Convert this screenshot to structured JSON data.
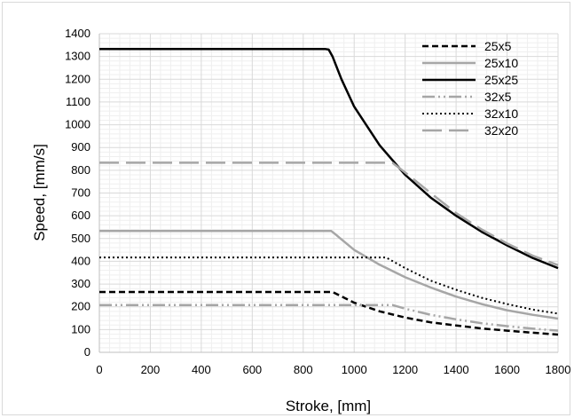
{
  "chart_data": {
    "type": "line",
    "title": "",
    "xlabel": "Stroke, [mm]",
    "ylabel": "Speed, [mm/s]",
    "xlim": [
      0,
      1800
    ],
    "ylim": [
      0,
      1400
    ],
    "x_ticks": [
      "0",
      "200",
      "400",
      "600",
      "800",
      "1000",
      "1200",
      "1400",
      "1600",
      "1800"
    ],
    "y_ticks": [
      "0",
      "100",
      "200",
      "300",
      "400",
      "500",
      "600",
      "700",
      "800",
      "900",
      "1000",
      "1100",
      "1200",
      "1300",
      "1400"
    ],
    "grid": "major and minor gridlines",
    "legend_position": "top-right",
    "series": [
      {
        "name": "25x5",
        "color": "#000000",
        "style": "dashed-thick",
        "points": [
          [
            0,
            265
          ],
          [
            915,
            265
          ],
          [
            1000,
            218
          ],
          [
            1100,
            180
          ],
          [
            1200,
            153
          ],
          [
            1300,
            132
          ],
          [
            1400,
            118
          ],
          [
            1500,
            105
          ],
          [
            1600,
            95
          ],
          [
            1700,
            86
          ],
          [
            1800,
            78
          ]
        ]
      },
      {
        "name": "25x10",
        "color": "#a6a6a6",
        "style": "solid",
        "points": [
          [
            0,
            533
          ],
          [
            910,
            533
          ],
          [
            925,
            520
          ],
          [
            1000,
            450
          ],
          [
            1100,
            385
          ],
          [
            1200,
            330
          ],
          [
            1300,
            285
          ],
          [
            1400,
            245
          ],
          [
            1500,
            212
          ],
          [
            1600,
            185
          ],
          [
            1700,
            165
          ],
          [
            1800,
            148
          ]
        ]
      },
      {
        "name": "25x25",
        "color": "#000000",
        "style": "solid-thick",
        "points": [
          [
            0,
            1333
          ],
          [
            885,
            1333
          ],
          [
            900,
            1330
          ],
          [
            915,
            1300
          ],
          [
            950,
            1200
          ],
          [
            1000,
            1080
          ],
          [
            1100,
            910
          ],
          [
            1200,
            780
          ],
          [
            1300,
            680
          ],
          [
            1400,
            600
          ],
          [
            1500,
            530
          ],
          [
            1600,
            470
          ],
          [
            1700,
            415
          ],
          [
            1800,
            370
          ]
        ]
      },
      {
        "name": "32x5",
        "color": "#a6a6a6",
        "style": "dash-dot-dot",
        "points": [
          [
            0,
            208
          ],
          [
            1150,
            208
          ],
          [
            1200,
            192
          ],
          [
            1300,
            165
          ],
          [
            1400,
            145
          ],
          [
            1500,
            128
          ],
          [
            1600,
            115
          ],
          [
            1700,
            104
          ],
          [
            1800,
            95
          ]
        ]
      },
      {
        "name": "32x10",
        "color": "#000000",
        "style": "dotted",
        "points": [
          [
            0,
            417
          ],
          [
            1125,
            417
          ],
          [
            1200,
            370
          ],
          [
            1300,
            315
          ],
          [
            1400,
            275
          ],
          [
            1500,
            240
          ],
          [
            1600,
            212
          ],
          [
            1700,
            188
          ],
          [
            1800,
            170
          ]
        ]
      },
      {
        "name": "32x20",
        "color": "#a6a6a6",
        "style": "long-dash",
        "points": [
          [
            0,
            833
          ],
          [
            1150,
            833
          ],
          [
            1200,
            790
          ],
          [
            1300,
            700
          ],
          [
            1400,
            612
          ],
          [
            1500,
            540
          ],
          [
            1600,
            478
          ],
          [
            1700,
            425
          ],
          [
            1800,
            383
          ]
        ]
      }
    ]
  }
}
